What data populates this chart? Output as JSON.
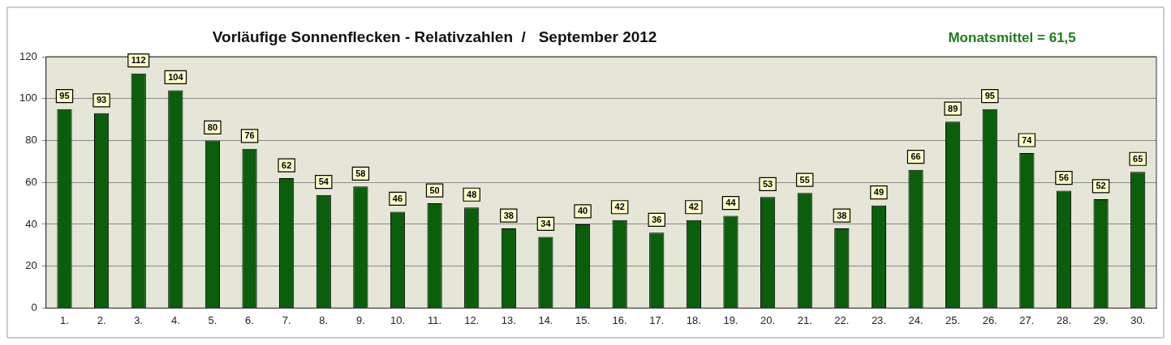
{
  "chart_data": {
    "type": "bar",
    "title": "Vorläufige Sonnenflecken - Relativzahlen  /   September 2012",
    "annotations": [
      "Monatsmittel = 61,5"
    ],
    "categories": [
      "1.",
      "2.",
      "3.",
      "4.",
      "5.",
      "6.",
      "7.",
      "8.",
      "9.",
      "10.",
      "11.",
      "12.",
      "13.",
      "14.",
      "15.",
      "16.",
      "17.",
      "18.",
      "19.",
      "20.",
      "21.",
      "22.",
      "23.",
      "24.",
      "25.",
      "26.",
      "27.",
      "28.",
      "29.",
      "30."
    ],
    "values": [
      95,
      93,
      112,
      104,
      80,
      76,
      62,
      54,
      58,
      46,
      50,
      48,
      38,
      34,
      40,
      42,
      36,
      42,
      44,
      53,
      55,
      38,
      49,
      66,
      89,
      95,
      74,
      56,
      52,
      65
    ],
    "color": "#0b5e0b",
    "ylim": [
      0,
      120
    ],
    "yticks": [
      0,
      20,
      40,
      60,
      80,
      100,
      120
    ],
    "grid": "y",
    "data_labels": true,
    "legend": false
  }
}
